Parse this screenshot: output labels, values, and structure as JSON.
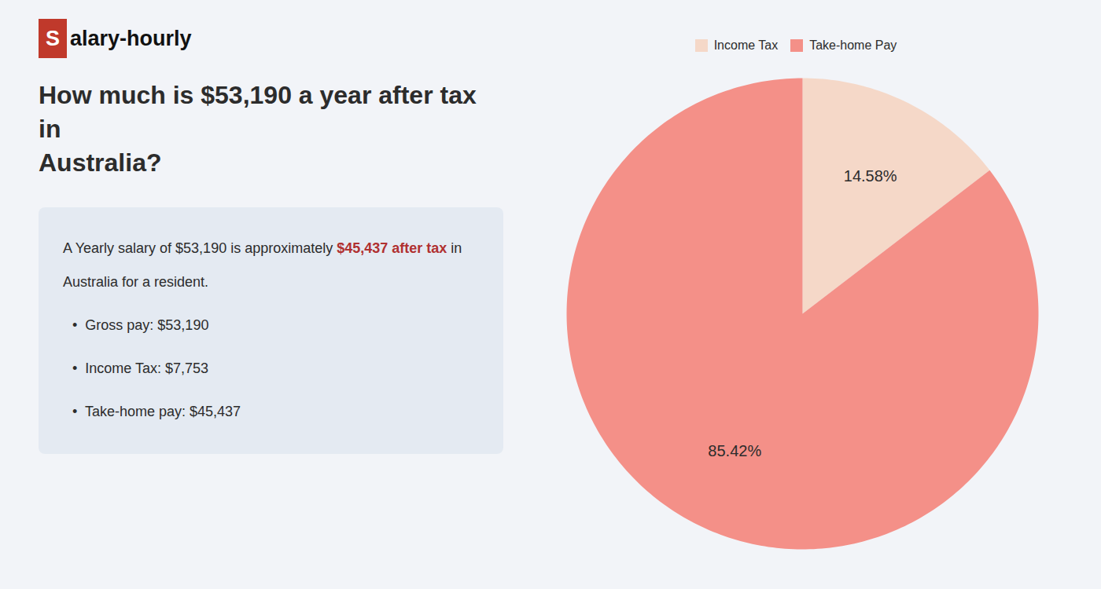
{
  "chart_data": {
    "type": "pie",
    "title": "How much is $53,190 a year after tax in\nAustralia?",
    "categories": [
      "Income Tax",
      "Take-home Pay"
    ],
    "values": [
      14.58,
      85.42
    ],
    "value_labels": [
      "14.58%",
      "85.42%"
    ],
    "colors": [
      "#f5d8c8",
      "#f49088"
    ],
    "legend": "top",
    "data_labels": true,
    "annotations": [
      {
        "text": "S",
        "color": "#c0392b"
      },
      {
        "text": "alary-hourly"
      },
      {
        "text": "A Yearly salary of $53,190 is approximately "
      },
      {
        "text": "$45,437 after tax",
        "color": "#b03030"
      },
      {
        "text": " in"
      },
      {
        "text": "Australia for a resident."
      },
      {
        "text": "•  Gross pay: $53,190"
      },
      {
        "text": "•  Income Tax: $7,753"
      },
      {
        "text": "•  Take-home pay: $45,437"
      }
    ]
  }
}
